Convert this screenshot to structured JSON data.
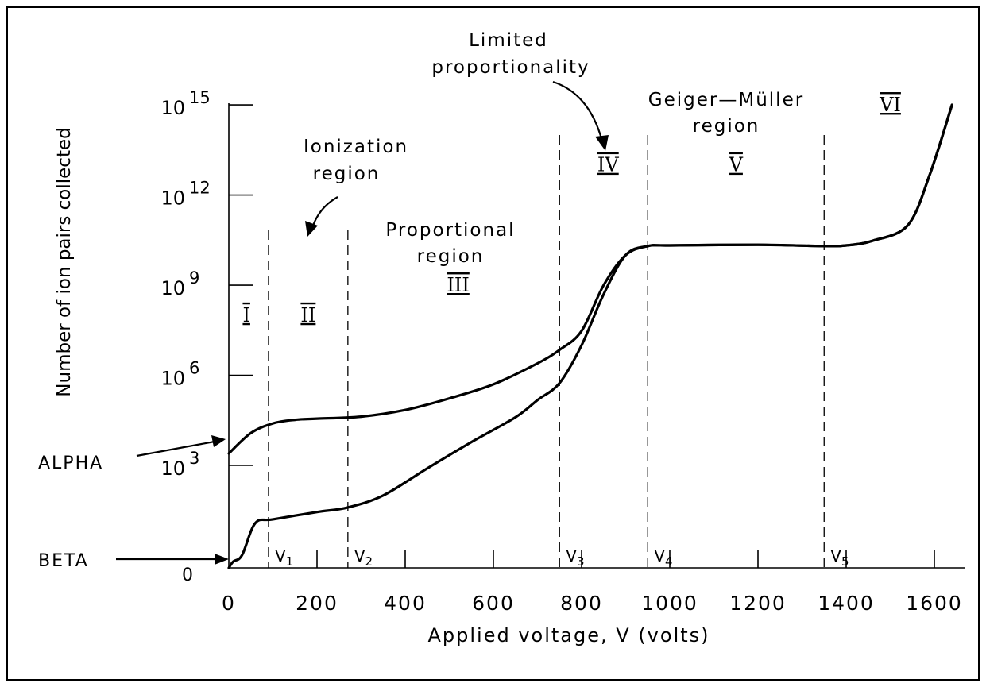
{
  "chart_data": {
    "type": "line",
    "title": "",
    "xlabel": "Applied voltage, V (volts)",
    "ylabel": "Number of ion pairs collected",
    "xlim": [
      0,
      1700
    ],
    "y_scale": "log",
    "x_ticks": [
      0,
      200,
      400,
      600,
      800,
      1000,
      1200,
      1400,
      1600
    ],
    "x_tick_labels": [
      "0",
      "200",
      "400",
      "600",
      "800",
      "1000",
      "1200",
      "1400",
      "1600"
    ],
    "y_ticks": [
      {
        "value": 0,
        "base": "0",
        "exp": ""
      },
      {
        "value": 1000,
        "base": "10",
        "exp": "3"
      },
      {
        "value": 1000000,
        "base": "10",
        "exp": "6"
      },
      {
        "value": 1000000000,
        "base": "10",
        "exp": "9"
      },
      {
        "value": 1000000000000,
        "base": "10",
        "exp": "12"
      },
      {
        "value": 1000000000000000,
        "base": "10",
        "exp": "15"
      }
    ],
    "thresholds": [
      {
        "x": 90,
        "label": "V",
        "sub": "1"
      },
      {
        "x": 270,
        "label": "V",
        "sub": "2"
      },
      {
        "x": 750,
        "label": "V",
        "sub": "3"
      },
      {
        "x": 950,
        "label": "V",
        "sub": "4"
      },
      {
        "x": 1350,
        "label": "V",
        "sub": "5"
      }
    ],
    "regions": [
      {
        "numeral": "I",
        "x": 40,
        "y": 100000000.0
      },
      {
        "numeral": "II",
        "x": 180,
        "y": 100000000.0
      },
      {
        "numeral": "III",
        "x": 520,
        "y": 1000000000.0
      },
      {
        "numeral": "IV",
        "x": 860,
        "y": 10000000000000.0
      },
      {
        "numeral": "V",
        "x": 1150,
        "y": 10000000000000.0
      },
      {
        "numeral": "VI",
        "x": 1500,
        "y": 1000000000000000.0
      }
    ],
    "series": [
      {
        "name": "ALPHA",
        "x": [
          0,
          50,
          100,
          150,
          200,
          300,
          400,
          500,
          600,
          700,
          750,
          800,
          850,
          900,
          950,
          1000,
          1200,
          1350,
          1400,
          1460,
          1540,
          1590,
          1640
        ],
        "y": [
          2500.0,
          12000.0,
          25000.0,
          33000.0,
          36000.0,
          42000.0,
          70000.0,
          170000.0,
          500000.0,
          2500000.0,
          7000000.0,
          30000000.0,
          1000000000.0,
          10000000000.0,
          20000000000.0,
          21000000000.0,
          22000000000.0,
          20000000000.0,
          21000000000.0,
          30000000000.0,
          100000000000.0,
          5000000000000.0,
          1000000000000000.0
        ]
      },
      {
        "name": "BETA",
        "x": [
          0,
          10,
          30,
          60,
          100,
          200,
          270,
          350,
          450,
          550,
          650,
          700,
          750,
          800,
          850,
          900,
          950,
          1000,
          1200,
          1350,
          1400,
          1460,
          1540,
          1590,
          1640
        ],
        "y": [
          0,
          4,
          8,
          12,
          16,
          28,
          40,
          100,
          800,
          6000,
          40000.0,
          150000.0,
          550000.0,
          10000000.0,
          500000000.0,
          10000000000.0,
          20000000000.0,
          21000000000.0,
          22000000000.0,
          20000000000.0,
          21000000000.0,
          30000000000.0,
          100000000000.0,
          5000000000000.0,
          1000000000000000.0
        ]
      }
    ],
    "annotations": [
      {
        "name": "ionization",
        "text": [
          "Ionization",
          "region"
        ]
      },
      {
        "name": "proportional",
        "text": [
          "Proportional",
          "region"
        ]
      },
      {
        "name": "limited",
        "text": [
          "Limited",
          "proportionality"
        ]
      },
      {
        "name": "geiger",
        "text": [
          "Geiger—Müller",
          "region"
        ]
      }
    ]
  }
}
